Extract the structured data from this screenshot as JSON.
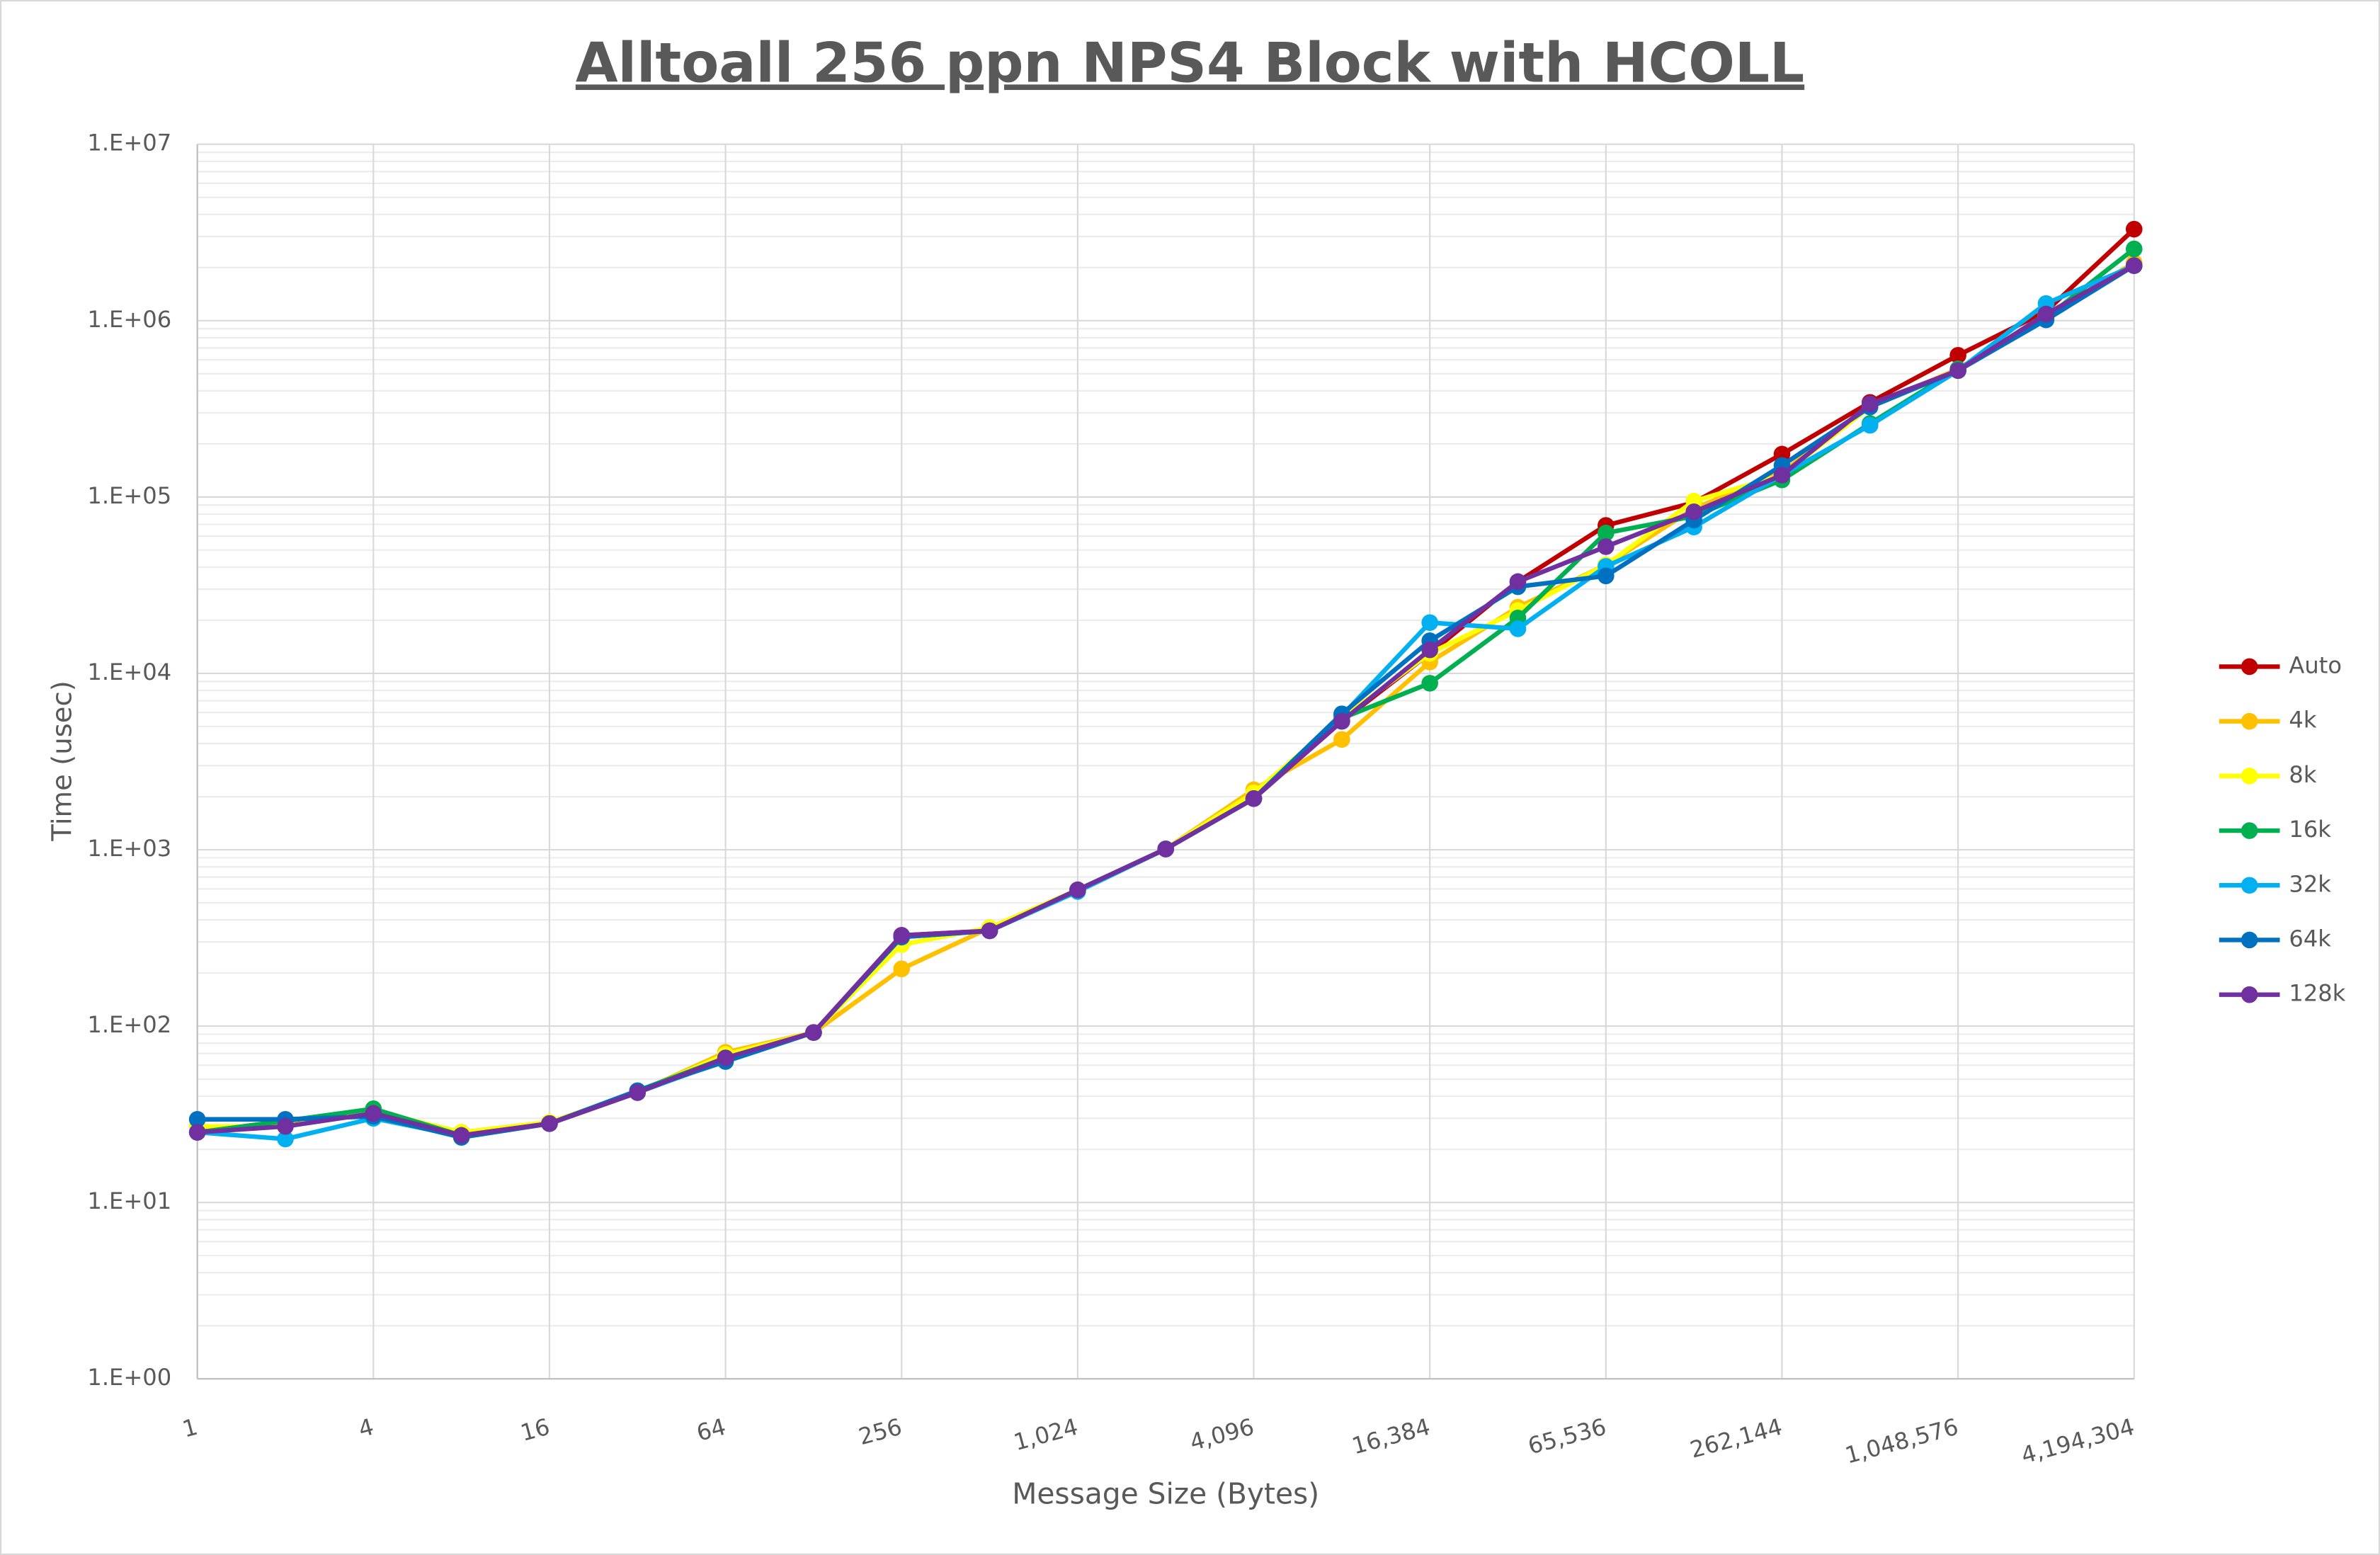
{
  "chart_data": {
    "type": "line",
    "title": "Alltoall 256 ppn NPS4 Block with HCOLL",
    "x_label": "Message Size (Bytes)",
    "y_label": "Time (usec)",
    "x_log_base": 2,
    "y_log_base": 10,
    "xlim": [
      1,
      4194304
    ],
    "ylim": [
      1,
      10000000
    ],
    "xticks": [
      1,
      4,
      16,
      64,
      256,
      {
        "value": 1024,
        "label": "1,024"
      },
      {
        "value": 4096,
        "label": "4,096"
      },
      {
        "value": 16384,
        "label": "16,384"
      },
      {
        "value": 65536,
        "label": "65,536"
      },
      {
        "value": 262144,
        "label": "262,144"
      },
      {
        "value": 1048576,
        "label": "1,048,576"
      },
      {
        "value": 4194304,
        "label": "4,194,304"
      }
    ],
    "yticks": [
      {
        "value": 1,
        "label": "1.E+00"
      },
      {
        "value": 10,
        "label": "1.E+01"
      },
      {
        "value": 100,
        "label": "1.E+02"
      },
      {
        "value": 1000,
        "label": "1.E+03"
      },
      {
        "value": 10000,
        "label": "1.E+04"
      },
      {
        "value": 100000,
        "label": "1.E+05"
      },
      {
        "value": 1000000,
        "label": "1.E+06"
      },
      {
        "value": 10000000,
        "label": "1.E+07"
      }
    ],
    "grid": true,
    "minor_grid": true,
    "legend": "right",
    "x": [
      1,
      2,
      4,
      8,
      16,
      32,
      64,
      128,
      256,
      512,
      1024,
      2048,
      4096,
      8192,
      16384,
      32768,
      65536,
      131072,
      262144,
      524288,
      1048576,
      2097152,
      4194304
    ],
    "series": [
      {
        "name": "Auto",
        "color": "#c00000",
        "values": [
          25,
          29,
          33,
          24,
          28,
          42,
          66,
          92,
          327,
          347,
          592,
          1010,
          1950,
          5350,
          13000,
          33100,
          69000,
          93000,
          175000,
          344000,
          636000,
          1130000,
          3300000
        ]
      },
      {
        "name": "4k",
        "color": "#ffc000",
        "values": [
          27,
          27,
          33,
          25,
          28.5,
          42,
          71,
          92,
          211,
          361,
          592,
          1010,
          2190,
          4220,
          11600,
          23700,
          41200,
          86000,
          138000,
          324000,
          532000,
          1060000,
          2130000
        ]
      },
      {
        "name": "8k",
        "color": "#ffff00",
        "values": [
          27,
          27,
          33,
          25,
          28.5,
          42,
          69,
          92,
          290,
          361,
          592,
          1010,
          2100,
          5560,
          13000,
          22700,
          41200,
          94800,
          133000,
          324000,
          521000,
          1090000,
          2050000
        ]
      },
      {
        "name": "16k",
        "color": "#00b050",
        "values": [
          25,
          29,
          34,
          24,
          28,
          43,
          66,
          92,
          320,
          347,
          592,
          1010,
          1950,
          5560,
          8790,
          20600,
          62500,
          77800,
          125000,
          261000,
          532000,
          1040000,
          2550000
        ]
      },
      {
        "name": "32k",
        "color": "#00b0f0",
        "values": [
          25,
          22.9,
          30,
          23.8,
          28,
          42,
          64,
          92,
          320,
          347,
          580,
          1010,
          1950,
          5740,
          19400,
          17900,
          40400,
          67600,
          133000,
          255000,
          521000,
          1250000,
          2050000
        ]
      },
      {
        "name": "64k",
        "color": "#0070c0",
        "values": [
          29.6,
          29.6,
          30.8,
          23.4,
          28,
          43,
          63,
          92,
          320,
          347,
          592,
          1010,
          1950,
          5890,
          15300,
          31000,
          35700,
          74000,
          151000,
          324000,
          521000,
          1010000,
          2050000
        ]
      },
      {
        "name": "128k",
        "color": "#7030a0",
        "values": [
          25,
          27,
          32,
          24,
          28,
          42,
          66,
          92,
          327,
          347,
          592,
          1010,
          1950,
          5350,
          13600,
          33100,
          52300,
          82400,
          133000,
          337000,
          521000,
          1090000,
          2050000
        ]
      }
    ]
  }
}
